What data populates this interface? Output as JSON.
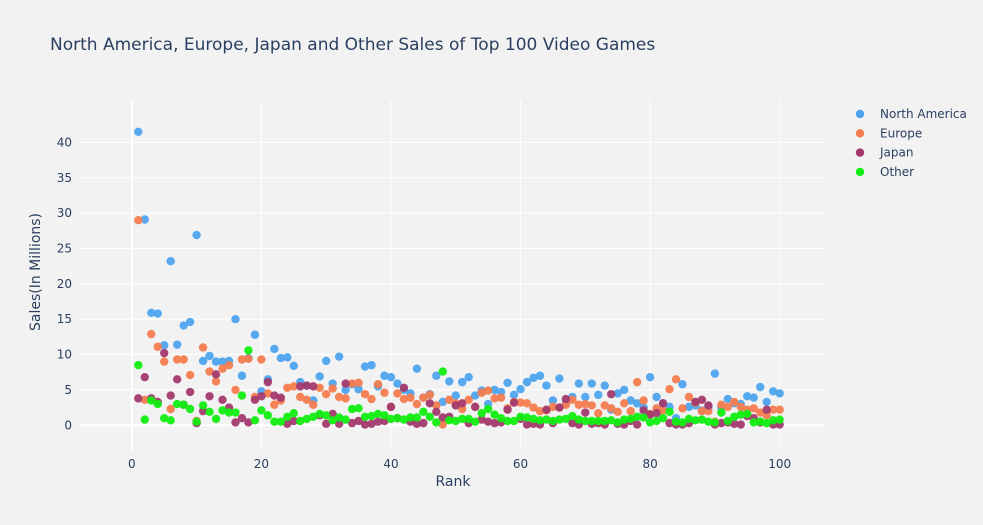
{
  "chart_data": {
    "type": "scatter",
    "title": "North America, Europe, Japan and Other Sales of Top 100 Video Games",
    "xlabel": "Rank",
    "ylabel": "Sales(In Millions)",
    "xlim": [
      -8,
      107
    ],
    "ylim": [
      -3.5,
      46
    ],
    "x_ticks": [
      0,
      20,
      40,
      60,
      80,
      100
    ],
    "y_ticks": [
      0,
      5,
      10,
      15,
      20,
      25,
      30,
      35,
      40
    ],
    "grid": true,
    "legend_position": "top-right",
    "series": [
      {
        "name": "North America",
        "color": "#4da3ee",
        "x": [
          1,
          2,
          3,
          4,
          5,
          6,
          7,
          8,
          9,
          10,
          11,
          12,
          13,
          14,
          15,
          16,
          17,
          18,
          19,
          20,
          21,
          22,
          23,
          24,
          25,
          26,
          27,
          28,
          29,
          30,
          31,
          32,
          33,
          34,
          35,
          36,
          37,
          38,
          39,
          40,
          41,
          42,
          43,
          44,
          45,
          46,
          47,
          48,
          49,
          50,
          51,
          52,
          53,
          54,
          55,
          56,
          57,
          58,
          59,
          60,
          61,
          62,
          63,
          64,
          65,
          66,
          67,
          68,
          69,
          70,
          71,
          72,
          73,
          74,
          75,
          76,
          77,
          78,
          79,
          80,
          81,
          82,
          83,
          84,
          85,
          86,
          87,
          88,
          89,
          90,
          91,
          92,
          93,
          94,
          95,
          96,
          97,
          98,
          99,
          100
        ],
        "y": [
          41.5,
          29.1,
          15.9,
          15.8,
          11.3,
          23.2,
          11.4,
          14.1,
          14.6,
          26.9,
          9.1,
          9.8,
          9.0,
          9.0,
          9.1,
          15.0,
          7.0,
          9.5,
          12.8,
          4.8,
          6.5,
          10.8,
          9.5,
          9.6,
          8.4,
          6.1,
          5.6,
          3.5,
          6.9,
          9.1,
          5.9,
          9.7,
          5.0,
          5.8,
          5.1,
          8.3,
          8.5,
          5.5,
          7.0,
          6.8,
          5.9,
          5.0,
          4.5,
          8.0,
          3.9,
          4.4,
          7.0,
          3.3,
          6.2,
          4.2,
          6.1,
          6.8,
          4.2,
          4.9,
          3.0,
          5.0,
          4.7,
          6.0,
          4.3,
          5.1,
          6.1,
          6.7,
          7.0,
          5.6,
          3.5,
          6.6,
          3.1,
          4.0,
          5.9,
          4.0,
          5.9,
          4.3,
          5.6,
          2.2,
          4.5,
          5.0,
          3.5,
          3.1,
          2.5,
          6.8,
          4.0,
          3.1,
          2.6,
          1.0,
          5.8,
          2.6,
          2.8,
          2.1,
          2.5,
          7.3,
          2.5,
          3.7,
          3.1,
          3.0,
          4.1,
          3.9,
          5.4,
          3.3,
          4.8,
          4.5
        ]
      },
      {
        "name": "Europe",
        "color": "#f47c4e",
        "x": [
          1,
          2,
          3,
          4,
          5,
          6,
          7,
          8,
          9,
          10,
          11,
          12,
          13,
          14,
          15,
          16,
          17,
          18,
          19,
          20,
          21,
          22,
          23,
          24,
          25,
          26,
          27,
          28,
          29,
          30,
          31,
          32,
          33,
          34,
          35,
          36,
          37,
          38,
          39,
          40,
          41,
          42,
          43,
          44,
          45,
          46,
          47,
          48,
          49,
          50,
          51,
          52,
          53,
          54,
          55,
          56,
          57,
          58,
          59,
          60,
          61,
          62,
          63,
          64,
          65,
          66,
          67,
          68,
          69,
          70,
          71,
          72,
          73,
          74,
          75,
          76,
          77,
          78,
          79,
          80,
          81,
          82,
          83,
          84,
          85,
          86,
          87,
          88,
          89,
          90,
          91,
          92,
          93,
          94,
          95,
          96,
          97,
          98,
          99,
          100
        ],
        "y": [
          29.0,
          3.6,
          12.9,
          11.1,
          9.0,
          2.3,
          9.3,
          9.3,
          7.1,
          0.6,
          11.0,
          7.6,
          6.2,
          8.0,
          8.5,
          5.0,
          9.3,
          9.4,
          4.0,
          9.3,
          4.5,
          2.9,
          3.5,
          5.3,
          5.5,
          4.0,
          3.6,
          2.9,
          5.3,
          4.4,
          5.2,
          4.0,
          3.8,
          5.9,
          6.0,
          4.4,
          3.7,
          5.8,
          4.6,
          2.6,
          4.5,
          3.7,
          3.9,
          3.0,
          3.9,
          4.3,
          2.8,
          0.1,
          3.6,
          3.1,
          2.3,
          3.6,
          2.6,
          4.6,
          4.9,
          3.8,
          3.9,
          2.4,
          3.3,
          3.2,
          3.1,
          2.5,
          2.0,
          2.1,
          2.6,
          2.5,
          2.9,
          3.6,
          2.9,
          3.0,
          2.8,
          1.7,
          2.8,
          2.4,
          1.9,
          3.1,
          2.0,
          6.1,
          3.5,
          1.6,
          2.4,
          2.1,
          5.1,
          6.5,
          2.4,
          4.0,
          3.2,
          2.0,
          2.0,
          0.5,
          2.9,
          2.6,
          3.3,
          2.6,
          2.2,
          2.4,
          1.8,
          1.4,
          2.2,
          2.2
        ]
      },
      {
        "name": "Japan",
        "color": "#a33a6e",
        "x": [
          1,
          2,
          3,
          4,
          5,
          6,
          7,
          8,
          9,
          10,
          11,
          12,
          13,
          14,
          15,
          16,
          17,
          18,
          19,
          20,
          21,
          22,
          23,
          24,
          25,
          26,
          27,
          28,
          29,
          30,
          31,
          32,
          33,
          34,
          35,
          36,
          37,
          38,
          39,
          40,
          41,
          42,
          43,
          44,
          45,
          46,
          47,
          48,
          49,
          50,
          51,
          52,
          53,
          54,
          55,
          56,
          57,
          58,
          59,
          60,
          61,
          62,
          63,
          64,
          65,
          66,
          67,
          68,
          69,
          70,
          71,
          72,
          73,
          74,
          75,
          76,
          77,
          78,
          79,
          80,
          81,
          82,
          83,
          84,
          85,
          86,
          87,
          88,
          89,
          90,
          91,
          92,
          93,
          94,
          95,
          96,
          97,
          98,
          99,
          100
        ],
        "y": [
          3.8,
          6.8,
          3.8,
          3.3,
          10.2,
          4.2,
          6.5,
          2.9,
          4.7,
          0.3,
          2.0,
          4.1,
          7.2,
          3.6,
          2.5,
          0.4,
          1.0,
          0.4,
          3.6,
          4.1,
          6.1,
          4.2,
          3.9,
          0.2,
          0.6,
          5.5,
          5.6,
          5.5,
          1.4,
          0.2,
          1.6,
          0.2,
          5.9,
          0.3,
          0.6,
          0.1,
          0.2,
          0.5,
          0.6,
          2.6,
          1.0,
          5.3,
          0.5,
          0.2,
          0.3,
          3.1,
          1.9,
          1.1,
          1.2,
          2.8,
          3.1,
          0.3,
          2.6,
          0.8,
          0.5,
          0.3,
          0.4,
          2.2,
          3.2,
          0.9,
          0.1,
          0.2,
          0.1,
          2.2,
          0.3,
          2.5,
          3.7,
          0.3,
          0.1,
          1.8,
          0.2,
          0.3,
          0.1,
          4.4,
          0.2,
          0.1,
          0.6,
          0.1,
          2.1,
          1.5,
          1.7,
          3.1,
          0.3,
          0.1,
          0.1,
          0.3,
          3.3,
          3.6,
          2.8,
          0.1,
          0.3,
          0.4,
          0.2,
          0.1,
          1.3,
          1.0,
          0.4,
          2.2,
          0.1,
          0.1
        ]
      },
      {
        "name": "Other",
        "color": "#11ee11",
        "x": [
          1,
          2,
          3,
          4,
          5,
          6,
          7,
          8,
          9,
          10,
          11,
          12,
          13,
          14,
          15,
          16,
          17,
          18,
          19,
          20,
          21,
          22,
          23,
          24,
          25,
          26,
          27,
          28,
          29,
          30,
          31,
          32,
          33,
          34,
          35,
          36,
          37,
          38,
          39,
          40,
          41,
          42,
          43,
          44,
          45,
          46,
          47,
          48,
          49,
          50,
          51,
          52,
          53,
          54,
          55,
          56,
          57,
          58,
          59,
          60,
          61,
          62,
          63,
          64,
          65,
          66,
          67,
          68,
          69,
          70,
          71,
          72,
          73,
          74,
          75,
          76,
          77,
          78,
          79,
          80,
          81,
          82,
          83,
          84,
          85,
          86,
          87,
          88,
          89,
          90,
          91,
          92,
          93,
          94,
          95,
          96,
          97,
          98,
          99,
          100
        ],
        "y": [
          8.5,
          0.8,
          3.5,
          3.0,
          1.0,
          0.7,
          3.0,
          2.9,
          2.3,
          0.5,
          2.8,
          1.9,
          0.9,
          2.1,
          1.8,
          1.8,
          4.2,
          10.6,
          0.7,
          2.1,
          1.4,
          0.5,
          0.5,
          1.2,
          1.7,
          0.6,
          0.9,
          1.2,
          1.6,
          1.4,
          0.7,
          1.1,
          0.8,
          2.3,
          2.4,
          1.2,
          1.3,
          1.6,
          1.4,
          0.9,
          1.0,
          0.8,
          1.1,
          1.1,
          1.9,
          1.2,
          0.4,
          7.6,
          0.7,
          0.6,
          0.9,
          0.9,
          0.5,
          1.7,
          2.3,
          1.5,
          1.0,
          0.6,
          0.6,
          1.2,
          1.1,
          0.9,
          0.7,
          0.8,
          0.6,
          0.8,
          0.9,
          1.3,
          0.8,
          0.6,
          0.6,
          0.6,
          0.6,
          0.7,
          0.4,
          0.8,
          0.9,
          1.2,
          1.1,
          0.4,
          0.6,
          1.0,
          1.9,
          0.5,
          0.4,
          0.9,
          0.7,
          0.8,
          0.5,
          0.4,
          1.8,
          0.6,
          1.2,
          1.5,
          1.6,
          0.4,
          0.5,
          0.3,
          0.7,
          0.8
        ]
      }
    ]
  }
}
